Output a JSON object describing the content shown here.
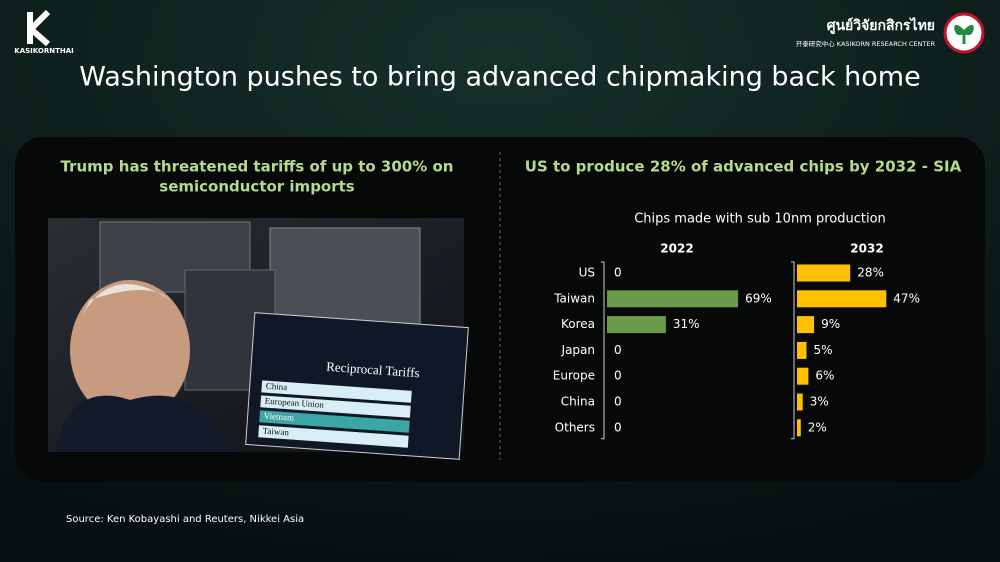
{
  "header": {
    "brand": "KASIKORNTHAI",
    "research_thai": "ศูนย์วิจัยกสิกรไทย",
    "research_en": "开泰研究中心 KASIKORN RESEARCH CENTER"
  },
  "title": "Washington pushes to bring advanced chipmaking back home",
  "left_panel": {
    "heading_lines": [
      "Trump has threatened tariffs of up to 300% on",
      "semiconductor imports"
    ],
    "photo_texts": {
      "placard": "Reciprocal Tariffs",
      "rows": [
        "China",
        "European Union",
        "Vietnam",
        "Taiwan"
      ]
    }
  },
  "chart_data": {
    "type": "bar",
    "orientation": "horizontal",
    "title": "US to produce 28% of advanced chips by 2032 - SIA",
    "subtitle": "Chips made with sub 10nm production",
    "categories": [
      "US",
      "Taiwan",
      "Korea",
      "Japan",
      "Europe",
      "China",
      "Others"
    ],
    "series": [
      {
        "name": "2022",
        "color": "#6a9a4a",
        "values": [
          0,
          69,
          31,
          0,
          0,
          0,
          0
        ],
        "value_labels": [
          "0",
          "69%",
          "31%",
          "0",
          "0",
          "0",
          "0"
        ]
      },
      {
        "name": "2032",
        "color": "#ffc000",
        "values": [
          28,
          47,
          9,
          5,
          6,
          3,
          2
        ],
        "value_labels": [
          "28%",
          "47%",
          "9%",
          "5%",
          "6%",
          "3%",
          "2%"
        ]
      }
    ],
    "xlim": [
      0,
      80
    ]
  },
  "source": "Source: Ken Kobayashi and Reuters, Nikkei Asia"
}
